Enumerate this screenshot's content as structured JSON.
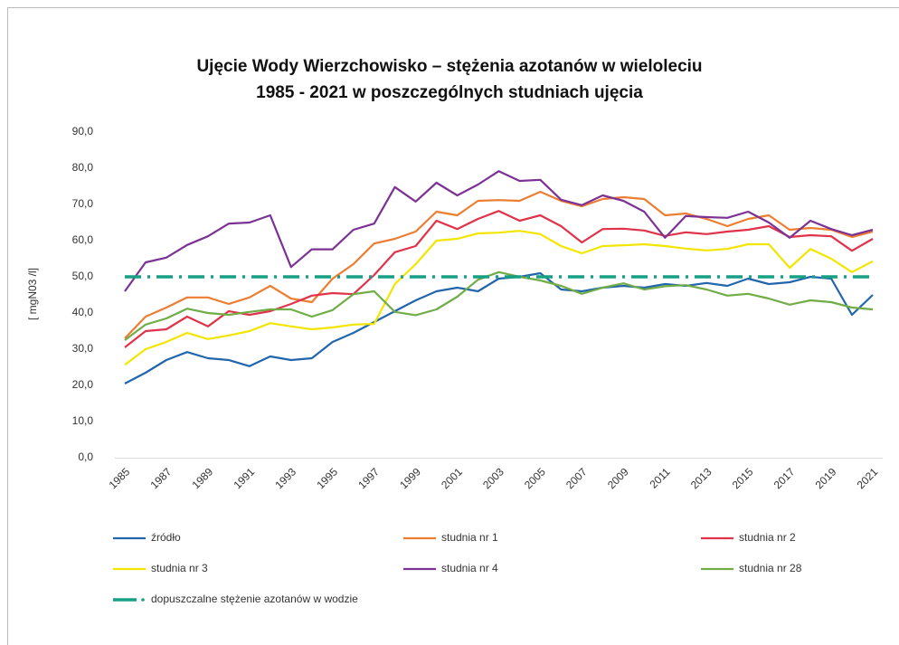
{
  "chart_data": {
    "type": "line",
    "title": "Ujęcie Wody Wierzchowisko – stężenia azotanów w wieloleciu",
    "subtitle": "1985 - 2021 w poszczególnych studniach ujęcia",
    "y_label": "[ mgN03 /l]",
    "x": [
      1985,
      1986,
      1987,
      1988,
      1989,
      1990,
      1991,
      1992,
      1993,
      1994,
      1995,
      1996,
      1997,
      1998,
      1999,
      2000,
      2001,
      2002,
      2003,
      2004,
      2005,
      2006,
      2007,
      2008,
      2009,
      2010,
      2011,
      2012,
      2013,
      2014,
      2015,
      2016,
      2017,
      2018,
      2019,
      2020,
      2021
    ],
    "xlim": [
      1985,
      2021
    ],
    "xticks": [
      1985,
      1987,
      1989,
      1991,
      1993,
      1995,
      1997,
      1999,
      2001,
      2003,
      2005,
      2007,
      2009,
      2011,
      2013,
      2015,
      2017,
      2019,
      2021
    ],
    "ylim": [
      0,
      90
    ],
    "yticks": [
      {
        "value": 0,
        "label": "0,0"
      },
      {
        "value": 10,
        "label": "10,0"
      },
      {
        "value": 20,
        "label": "20,0"
      },
      {
        "value": 30,
        "label": "30,0"
      },
      {
        "value": 40,
        "label": "40,0"
      },
      {
        "value": 50,
        "label": "50,0"
      },
      {
        "value": 60,
        "label": "60,0"
      },
      {
        "value": 70,
        "label": "70,0"
      },
      {
        "value": 80,
        "label": "80,0"
      },
      {
        "value": 90,
        "label": "90,0"
      }
    ],
    "grid": false,
    "series": [
      {
        "name": "źródło",
        "color": "#2166ac",
        "values": [
          20.5,
          23.5,
          27,
          29.2,
          27.5,
          27,
          25.3,
          28,
          27,
          27.5,
          32,
          34.5,
          37.5,
          40.5,
          43.5,
          46,
          47,
          46,
          49.5,
          50,
          51,
          46.5,
          46,
          47,
          47.5,
          47,
          48,
          47.5,
          48.3,
          47.5,
          49.5,
          48,
          48.5,
          50,
          49.5,
          39.5,
          45
        ]
      },
      {
        "name": "studnia nr 1",
        "color": "#ed7d31",
        "values": [
          33,
          39,
          41.5,
          44.3,
          44.3,
          42.5,
          44.3,
          47.5,
          44,
          43,
          49.5,
          53.5,
          59.2,
          60.5,
          62.5,
          68,
          67,
          71,
          71.2,
          71,
          73.5,
          71,
          69.5,
          71.5,
          72,
          71.5,
          67,
          67.5,
          66,
          64,
          66,
          67,
          63,
          63.5,
          63,
          61,
          62.5
        ]
      },
      {
        "name": "studnia nr 2",
        "color": "#e0334a",
        "values": [
          30.5,
          35,
          35.5,
          39,
          36.3,
          40.5,
          39.5,
          40.5,
          42.5,
          44.8,
          45.5,
          45.2,
          50.5,
          56.8,
          58.5,
          65.5,
          63.2,
          66,
          68.2,
          65.5,
          67,
          64,
          59.5,
          63.2,
          63.3,
          62.8,
          61.3,
          62.3,
          61.8,
          62.5,
          63,
          64,
          61,
          61.5,
          61.2,
          57.2,
          60.5
        ]
      },
      {
        "name": "studnia nr 3",
        "color": "#f2e600",
        "values": [
          25.7,
          30,
          32,
          34.5,
          32.8,
          33.8,
          35,
          37.2,
          36.3,
          35.5,
          36,
          36.8,
          37,
          48,
          53.5,
          60,
          60.5,
          62,
          62.2,
          62.7,
          61.8,
          58.5,
          56.5,
          58.5,
          58.7,
          59,
          58.5,
          57.8,
          57.3,
          57.7,
          59,
          59,
          52.5,
          57.7,
          55,
          51.3,
          54.3
        ]
      },
      {
        "name": "studnia nr 4",
        "color": "#7b3294",
        "values": [
          46,
          54,
          55.3,
          58.8,
          61.2,
          64.7,
          65,
          67,
          52.7,
          57.6,
          57.6,
          63,
          64.7,
          74.8,
          70.8,
          76,
          72.5,
          75.5,
          79.2,
          76.5,
          76.8,
          71.3,
          69.8,
          72.5,
          71,
          68,
          60.8,
          66.8,
          66.5,
          66.3,
          68,
          65,
          60.8,
          65.5,
          63.2,
          61.5,
          63
        ]
      },
      {
        "name": "studnia nr 28",
        "color": "#70ad47",
        "values": [
          32.5,
          36.8,
          38.5,
          41.2,
          40,
          39.5,
          40.3,
          41,
          41,
          39,
          40.8,
          45.2,
          46,
          40.3,
          39.4,
          41,
          44.5,
          49.2,
          51.3,
          50,
          49,
          47.5,
          45.3,
          47,
          48.2,
          46.5,
          47.4,
          47.7,
          46.5,
          44.8,
          45.3,
          44,
          42.3,
          43.5,
          43,
          41.5,
          41
        ]
      },
      {
        "name": "dopuszczalne stężenie azotanów w wodzie",
        "color": "#17a084",
        "dashed": true,
        "values": [
          50,
          50,
          50,
          50,
          50,
          50,
          50,
          50,
          50,
          50,
          50,
          50,
          50,
          50,
          50,
          50,
          50,
          50,
          50,
          50,
          50,
          50,
          50,
          50,
          50,
          50,
          50,
          50,
          50,
          50,
          50,
          50,
          50,
          50,
          50,
          50,
          50
        ]
      }
    ]
  }
}
